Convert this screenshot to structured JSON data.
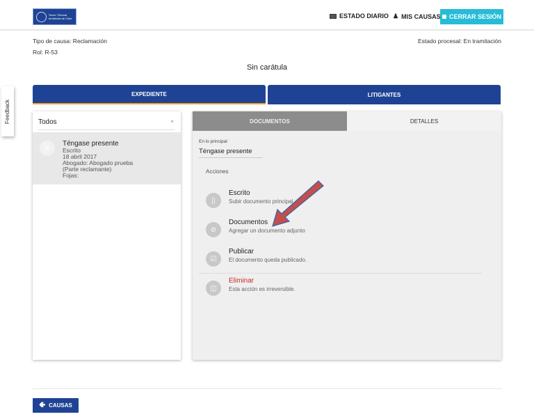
{
  "header": {
    "logo_text": "Tercer Tribunal Ambiental de Chile",
    "nav": [
      {
        "label": "ESTADO DIARIO",
        "icon": "newspaper-icon"
      },
      {
        "label": "MIS CAUSAS",
        "icon": "user-icon"
      }
    ],
    "logout_label": "CERRAR SESIÓN",
    "logout_icon": "lock-icon"
  },
  "case": {
    "tipo": "Tipo de causa: Reclamación",
    "rol": "Rol: R-53",
    "estado": "Estado procesal: En tramitación",
    "title": "Sin carátula"
  },
  "tabs": [
    {
      "label": "EXPEDIENTE",
      "active": true
    },
    {
      "label": "LITIGANTES",
      "active": false
    }
  ],
  "feedback_label": "Feedback",
  "left_panel": {
    "filter_value": "Todos",
    "items": [
      {
        "avatar": "E",
        "title": "Téngase presente",
        "lines": [
          "Escrito",
          "18 abril 2017",
          "Abogado: Abogado prueba",
          "(Parte reclamante)",
          "Fojas:"
        ]
      }
    ]
  },
  "right_panel": {
    "tabs": [
      {
        "label": "DOCUMENTOS",
        "active": false
      },
      {
        "label": "DETALLES",
        "active": true
      }
    ],
    "field_label": "En lo principal",
    "field_value": "Téngase presente",
    "actions_heading": "Acciones",
    "actions": [
      {
        "title": "Escrito",
        "subtitle": "Subir documento principal",
        "icon": "file-icon"
      },
      {
        "title": "Documentos",
        "subtitle": "Agregar un documento adjunto",
        "icon": "paperclip-icon"
      },
      {
        "title": "Publicar",
        "subtitle": "El documento queda publicado.",
        "icon": "checkbox-icon"
      },
      {
        "title": "Eliminar",
        "subtitle": "Esta acción es irreversible.",
        "icon": "trash-icon"
      }
    ]
  },
  "colors": {
    "brand": "#1f4394",
    "accent": "#26bcd7",
    "danger": "#c62828",
    "tab_underline": "#f0a030",
    "annotation_arrow": "#c0504d"
  },
  "footer": {
    "back_label": "CAUSAS",
    "back_icon": "arrow-left-icon"
  }
}
